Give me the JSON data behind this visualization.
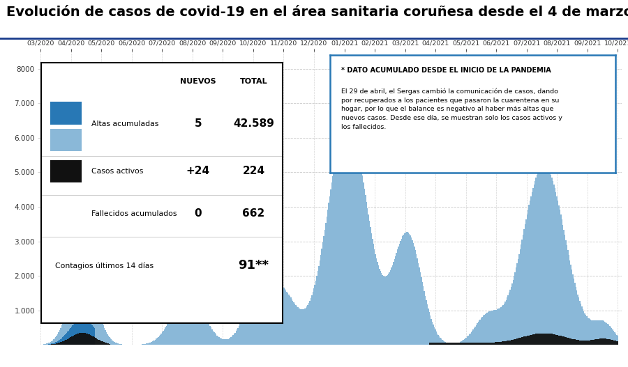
{
  "title": "Evolución de casos de covid-19 en el área sanitaria coruñesa desde el 4 de marzo",
  "title_color": "#000000",
  "title_fontsize": 14,
  "background_color": "#ffffff",
  "plot_bg_color": "#ffffff",
  "x_labels": [
    "03/2020",
    "04/2020",
    "05/2020",
    "06/2020",
    "07/2020",
    "08/2020",
    "09/2020",
    "10/2020",
    "11/2020",
    "12/2020",
    "01/2021",
    "02/2021",
    "03/2021",
    "04/2021",
    "05/2021",
    "06/2021",
    "07/2021",
    "08/2021",
    "09/2021",
    "10/2021"
  ],
  "ylim": [
    0,
    8500
  ],
  "yticks": [
    1000,
    2000,
    3000,
    4000,
    5000,
    6000,
    7000,
    8000
  ],
  "ytick_labels": [
    "1.000",
    "2.000",
    "3.000",
    "4.000",
    "5.000",
    "6.000",
    "7.000",
    "8000"
  ],
  "color_altas_dark": "#2878b5",
  "color_altas_light": "#8ab8d8",
  "color_activos": "#111111",
  "grid_color": "#bbbbbb",
  "title_line_color": "#1a3c8c",
  "legend_box": {
    "title_nuevos": "NUEVOS",
    "title_total": "TOTAL",
    "altas_label": "Altas acumuladas",
    "altas_nuevos": "5",
    "altas_total": "42.589",
    "activos_label": "Casos activos",
    "activos_nuevos": "+24",
    "activos_total": "224",
    "fallecidos_label": "Fallecidos acumulados",
    "fallecidos_nuevos": "0",
    "fallecidos_total": "662",
    "contagios_label": "Contagios últimos 14 días",
    "contagios_total": "91**"
  },
  "info_box": {
    "header": "* DATO ACUMULADO DESDE EL INICIO DE LA PANDEMIA",
    "text": "El 29 de abril, el Sergas cambió la comunicación de casos, dando\npor recuperados a los pacientes que pasaron la cuarentena en su\nhogar, por lo que el balance es negativo al haber más altas que\nnuevos casos. Desde ese día, se muestran solo los casos activos y\nlos fallecidos.",
    "border_color": "#2878b5"
  }
}
